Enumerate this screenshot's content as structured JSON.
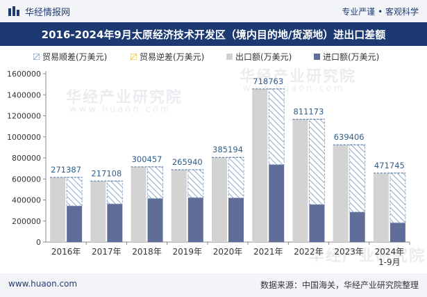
{
  "header": {
    "brand": "华经情报网",
    "tagline": "专业严谨 • 客观科学",
    "title": "2016-2024年9月太原经济技术开发区（境内目的地/货源地）进出口差额"
  },
  "footer": {
    "website": "www.huaon.com",
    "source": "数据来源：中国海关，华经产业研究院整理"
  },
  "watermark": {
    "brand_text": "华经产业研究院",
    "url_text": "www.huaon.com"
  },
  "colors": {
    "header_bg": "#1d3972",
    "surplus_hatch": "#8fa8c8",
    "deficit_hatch": "#e8c84a",
    "export_bar": "#d3d3d3",
    "import_bar": "#5f6d98",
    "value_label": "#2f5d8a"
  },
  "chart_data": {
    "type": "bar",
    "categories": [
      "2016年",
      "2017年",
      "2018年",
      "2019年",
      "2020年",
      "2021年",
      "2022年",
      "2023年",
      "2024年\n1-9月"
    ],
    "ylim": [
      0,
      1600000
    ],
    "yticks": [
      0,
      200000,
      400000,
      600000,
      800000,
      1000000,
      1200000,
      1400000,
      1600000
    ],
    "legend_position": "top",
    "grid": false,
    "series": [
      {
        "name": "贸易顺差(万美元)",
        "values": [
          271387,
          217108,
          300457,
          265940,
          385194,
          718763,
          811173,
          639406,
          471745
        ]
      },
      {
        "name": "贸易逆差(万美元)",
        "values": [
          0,
          0,
          0,
          0,
          0,
          0,
          0,
          0,
          0
        ]
      },
      {
        "name": "出口额(万美元)",
        "values": [
          615000,
          580000,
          715000,
          688000,
          805000,
          1455000,
          1168000,
          925000,
          655000
        ]
      },
      {
        "name": "进口额(万美元)",
        "values": [
          343613,
          362892,
          414543,
          422060,
          419806,
          736237,
          356827,
          285594,
          183255
        ]
      }
    ],
    "data_labels": [
      "271387",
      "217108",
      "300457",
      "265940",
      "385194",
      "718763",
      "811173",
      "639406",
      "471745"
    ]
  }
}
